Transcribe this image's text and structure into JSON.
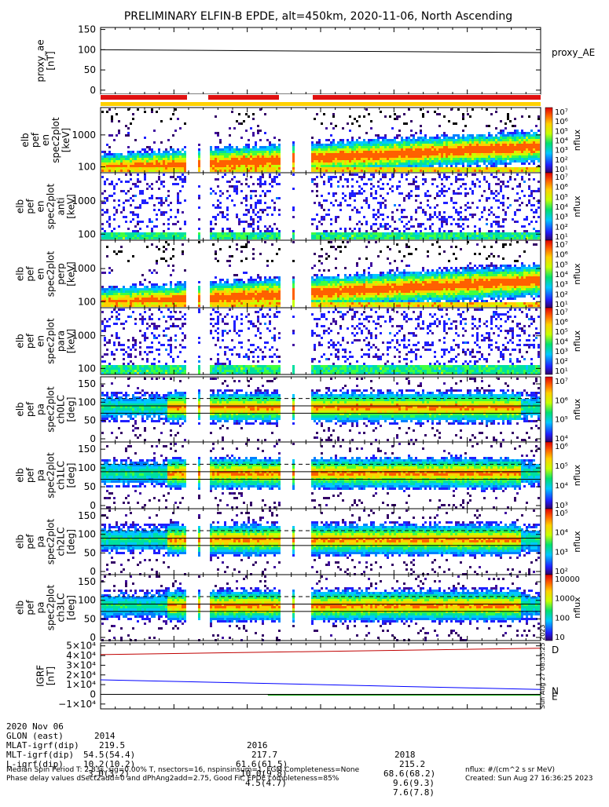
{
  "title": "PRELIMINARY ELFIN-B EPDE, alt=450km, 2020-11-06, North Ascending",
  "colors": {
    "red_bar": "#e01010",
    "yellow_bar": "#ffd000",
    "field_total": "#c00000",
    "field_n": "#0000ff",
    "field_e": "#00a000"
  },
  "chart_data": [
    {
      "type": "line",
      "id": "proxy_ae",
      "ylabel": [
        "proxy_ae",
        "[nT]"
      ],
      "yticks": [
        "150",
        "100",
        "50",
        "0"
      ],
      "ylim": [
        -10,
        155
      ],
      "legend": "proxy_AE",
      "series": [
        {
          "name": "proxy_AE",
          "x": [
            0,
            1
          ],
          "y": [
            100,
            93
          ]
        }
      ]
    },
    {
      "type": "heatmap",
      "id": "en_1",
      "ylabel": [
        "elb",
        "pef",
        "en",
        "spec2plot",
        "[keV]"
      ],
      "yticks": [
        "1000",
        "100"
      ],
      "cbar_label": "nflux",
      "cbar_ticks": [
        "10⁷",
        "10⁶",
        "10⁵",
        "10⁴",
        "10³",
        "10²",
        "10¹"
      ]
    },
    {
      "type": "heatmap",
      "id": "en_2",
      "ylabel": [
        "elb",
        "pef",
        "en",
        "spec2plot",
        "anti",
        "[keV]"
      ],
      "yticks": [
        "1000",
        "100"
      ],
      "cbar_label": "nflux",
      "cbar_ticks": [
        "10⁷",
        "10⁶",
        "10⁵",
        "10⁴",
        "10³",
        "10²",
        "10¹"
      ]
    },
    {
      "type": "heatmap",
      "id": "en_3",
      "ylabel": [
        "elb",
        "pef",
        "en",
        "spec2plot",
        "perp",
        "[keV]"
      ],
      "yticks": [
        "1000",
        "100"
      ],
      "cbar_label": "nflux",
      "cbar_ticks": [
        "10⁷",
        "10⁶",
        "10⁵",
        "10⁴",
        "10³",
        "10²",
        "10¹"
      ]
    },
    {
      "type": "heatmap",
      "id": "en_4",
      "ylabel": [
        "elb",
        "pef",
        "en",
        "spec2plot",
        "para",
        "[keV]"
      ],
      "yticks": [
        "1000",
        "100"
      ],
      "cbar_label": "nflux",
      "cbar_ticks": [
        "10⁷",
        "10⁶",
        "10⁵",
        "10⁴",
        "10³",
        "10²",
        "10¹"
      ]
    },
    {
      "type": "heatmap",
      "id": "pa_0",
      "ylabel": [
        "elb",
        "pef",
        "pa",
        "spec2plot",
        "ch0LC",
        "[deg]"
      ],
      "yticks": [
        "150",
        "100",
        "50",
        "0"
      ],
      "cbar_label": "nflux",
      "cbar_ticks": [
        "10⁷",
        "10⁶",
        "10⁵",
        "10⁴"
      ]
    },
    {
      "type": "heatmap",
      "id": "pa_1",
      "ylabel": [
        "elb",
        "pef",
        "pa",
        "spec2plot",
        "ch1LC",
        "[deg]"
      ],
      "yticks": [
        "150",
        "100",
        "50",
        "0"
      ],
      "cbar_label": "nflux",
      "cbar_ticks": [
        "10⁶",
        "10⁵",
        "10⁴",
        "10³"
      ]
    },
    {
      "type": "heatmap",
      "id": "pa_2",
      "ylabel": [
        "elb",
        "pef",
        "pa",
        "spec2plot",
        "ch2LC",
        "[deg]"
      ],
      "yticks": [
        "150",
        "100",
        "50",
        "0"
      ],
      "cbar_label": "nflux",
      "cbar_ticks": [
        "10⁵",
        "10⁴",
        "10³",
        "10²"
      ]
    },
    {
      "type": "heatmap",
      "id": "pa_3",
      "ylabel": [
        "elb",
        "pef",
        "pa",
        "spec2plot",
        "ch3LC",
        "[deg]"
      ],
      "yticks": [
        "150",
        "100",
        "50",
        "0"
      ],
      "cbar_label": "nflux",
      "cbar_ticks": [
        "10000",
        "1000",
        "100",
        "10"
      ]
    },
    {
      "type": "line",
      "id": "igrf",
      "ylabel": [
        "IGRF",
        "[nT]"
      ],
      "yticks": [
        "5×10⁴",
        "4×10⁴",
        "3×10⁴",
        "2×10⁴",
        "1×10⁴",
        "0",
        "−1×10⁴"
      ],
      "ylim": [
        -15000,
        53000
      ],
      "series": [
        {
          "name": "D",
          "x": [
            0,
            1
          ],
          "y": [
            41000,
            47500
          ]
        },
        {
          "name": "N",
          "x": [
            0,
            1
          ],
          "y": [
            15000,
            5000
          ]
        },
        {
          "name": "E",
          "x": [
            0.38,
            1
          ],
          "y": [
            -800,
            -800
          ]
        }
      ]
    }
  ],
  "xaxis": {
    "tick_labels": [
      "2014",
      "2016",
      "2018"
    ],
    "rows": [
      {
        "label": "2020 Nov 06",
        "values": [
          "",
          "",
          ""
        ]
      },
      {
        "label": "GLON (east)",
        "values": [
          "219.5",
          "217.7",
          "215.2"
        ]
      },
      {
        "label": "MLAT-igrf(dip)",
        "values": [
          "54.5(54.4)",
          "61.6(61.5)",
          "68.6(68.2)"
        ]
      },
      {
        "label": "MLT-igrf(dip)",
        "values": [
          "10.2(10.2)",
          "10.0(9.8)",
          "9.6(9.3)"
        ]
      },
      {
        "label": "L-igrf(dip)",
        "values": [
          "3.0(3.2)",
          "4.5(4.7)",
          "7.6(7.8)"
        ]
      }
    ]
  },
  "footer": {
    "line1": "Median Spin Period T: 2.83s, sig=0.00% T, nsectors=16, nspinsinsum=1, FGM Completeness=None",
    "line2": "Phase delay values dSect2add=0 and dPhAng2add=2.75, Good Fit, EPDE completeness=85%",
    "units": "nflux: #/(cm^2 s sr MeV)",
    "created": "Created: Sun Aug 27 16:36:25 2023",
    "side_stamp": "Sun Aug 27 08:35:25 2023"
  }
}
